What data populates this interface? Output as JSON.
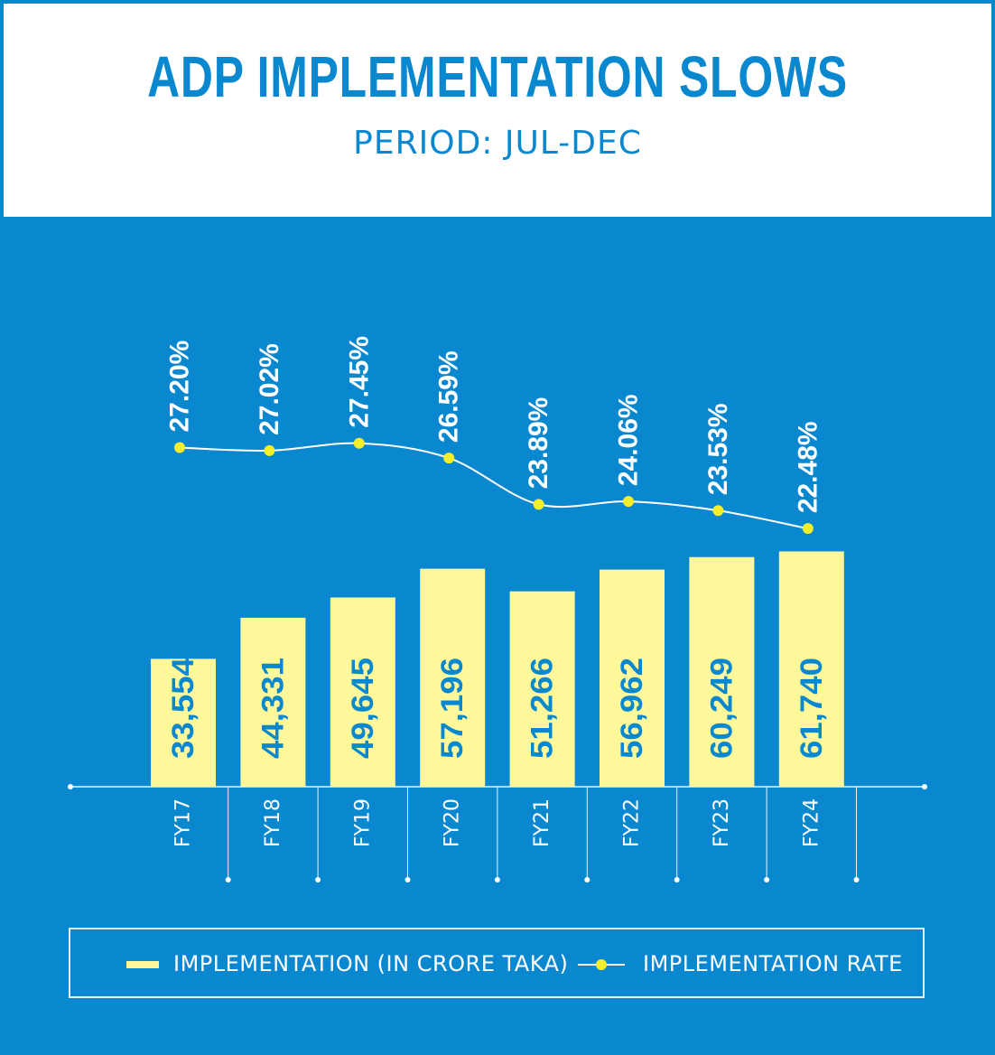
{
  "header": {
    "title": "ADP IMPLEMENTATION SLOWS",
    "subtitle": "PERIOD: JUL-DEC"
  },
  "colors": {
    "background": "#0a88cf",
    "bar": "#fef89a",
    "bar_label": "#0a88cf",
    "rate_line": "#ffffff",
    "rate_marker": "#f5ee2a",
    "rate_label": "#ffffff"
  },
  "legend": {
    "placement": "bottom",
    "bar_label": "IMPLEMENTATION (IN CRORE TAKA)",
    "line_label": "IMPLEMENTATION RATE"
  },
  "chart_data": {
    "type": "bar",
    "categories": [
      "FY17",
      "FY18",
      "FY19",
      "FY20",
      "FY21",
      "FY22",
      "FY23",
      "FY24"
    ],
    "series": [
      {
        "name": "IMPLEMENTATION (IN CRORE TAKA)",
        "type": "bar",
        "values": [
          33554,
          44331,
          49645,
          57196,
          51266,
          56962,
          60249,
          61740
        ],
        "labels": [
          "33,554",
          "44,331",
          "49,645",
          "57,196",
          "51,266",
          "56,962",
          "60,249",
          "61,740"
        ]
      },
      {
        "name": "IMPLEMENTATION RATE",
        "type": "line",
        "values": [
          27.2,
          27.02,
          27.45,
          26.59,
          23.89,
          24.06,
          23.53,
          22.48
        ],
        "labels": [
          "27.20%",
          "27.02%",
          "27.45%",
          "26.59%",
          "23.89%",
          "24.06%",
          "23.53%",
          "22.48%"
        ]
      }
    ],
    "title": "ADP IMPLEMENTATION SLOWS",
    "subtitle": "PERIOD: JUL-DEC",
    "grid": false,
    "axes_visible": false
  }
}
